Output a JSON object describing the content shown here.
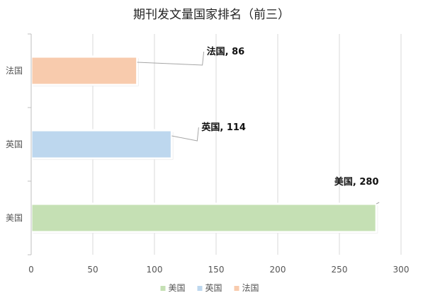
{
  "chart_data": {
    "type": "bar",
    "orientation": "horizontal",
    "title": "期刊发文量国家排名（前三）",
    "categories": [
      "美国",
      "英国",
      "法国"
    ],
    "values": [
      280,
      114,
      86
    ],
    "data_labels": [
      "美国, 280",
      "英国, 114",
      "法国, 86"
    ],
    "colors": [
      "#c5e0b4",
      "#bdd7ee",
      "#f8cbad"
    ],
    "xlim": [
      0,
      300
    ],
    "x_ticks": [
      "0",
      "50",
      "100",
      "150",
      "200",
      "250",
      "300"
    ],
    "grid": true,
    "legend": {
      "position": "bottom",
      "entries": [
        "美国",
        "英国",
        "法国"
      ]
    }
  }
}
